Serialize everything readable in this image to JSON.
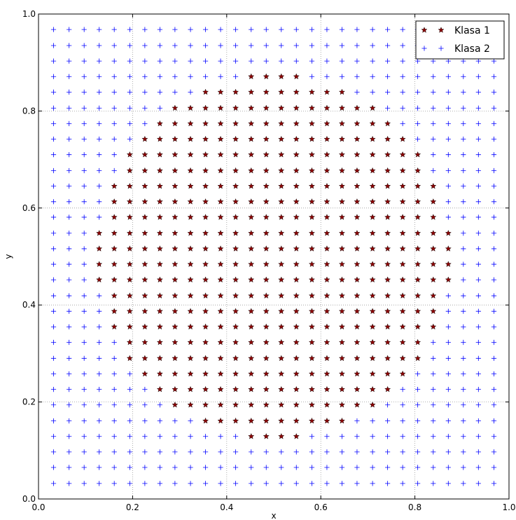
{
  "chart_data": {
    "type": "scatter",
    "title": "",
    "xlabel": "x",
    "ylabel": "y",
    "xlim": [
      0.0,
      1.0
    ],
    "ylim": [
      0.0,
      1.0
    ],
    "xticks": [
      "0.0",
      "0.2",
      "0.4",
      "0.6",
      "0.8",
      "1.0"
    ],
    "yticks": [
      "0.0",
      "0.2",
      "0.4",
      "0.6",
      "0.8",
      "1.0"
    ],
    "grid": true,
    "legend_position": "top-right",
    "grid_values": [
      0.032,
      0.065,
      0.097,
      0.129,
      0.161,
      0.194,
      0.226,
      0.258,
      0.29,
      0.323,
      0.355,
      0.387,
      0.419,
      0.452,
      0.484,
      0.516,
      0.548,
      0.581,
      0.613,
      0.645,
      0.677,
      0.71,
      0.742,
      0.774,
      0.806,
      0.839,
      0.871,
      0.903,
      0.935,
      0.968
    ],
    "series": [
      {
        "name": "Klasa 1",
        "marker": "star",
        "color": "#8b0000",
        "note": "grid points where (x-0.5)^2 + (y-0.5)^2 <= 0.1425"
      },
      {
        "name": "Klasa 2",
        "marker": "plus",
        "color": "#0000ff",
        "note": "all remaining grid points"
      }
    ]
  },
  "legend": {
    "items": [
      {
        "label": "Klasa 1",
        "marker": "star",
        "color": "#8b0000"
      },
      {
        "label": "Klasa 2",
        "marker": "plus",
        "color": "#0000ff"
      }
    ]
  },
  "colors": {
    "class1": "#8b0000",
    "class1_edge": "#000000",
    "class2": "#0000ff",
    "grid": "#9a9a9a",
    "frame": "#000000"
  }
}
